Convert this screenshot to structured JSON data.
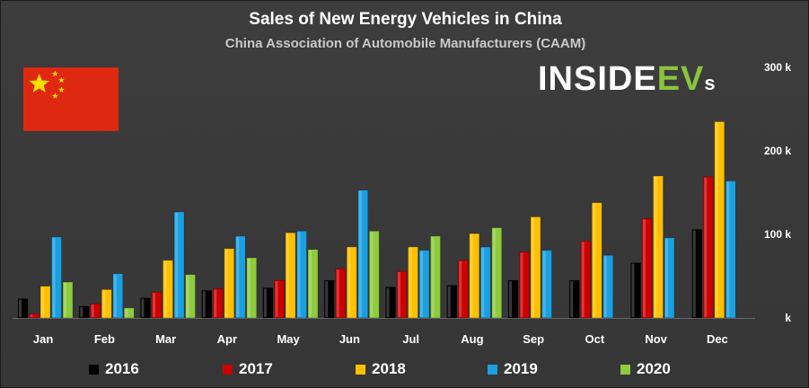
{
  "header": {
    "title": "Sales of New Energy Vehicles in China",
    "subtitle": "China Association of Automobile Manufacturers (CAAM)"
  },
  "logo": {
    "part1": "INSIDE",
    "part2": "EV",
    "part3": "s"
  },
  "flag_icon": "china-flag-icon",
  "colors": {
    "background": "#3d3d3d",
    "series": [
      "#000000",
      "#cc0000",
      "#ffc000",
      "#1a9fe0",
      "#8ecb3f"
    ],
    "axis_text": "#ffffff",
    "grid": "#555555"
  },
  "chart_data": {
    "type": "bar",
    "title": "Sales of New Energy Vehicles in China",
    "subtitle": "China Association of Automobile Manufacturers (CAAM)",
    "categories": [
      "Jan",
      "Feb",
      "Mar",
      "Apr",
      "May",
      "Jun",
      "Jul",
      "Aug",
      "Sep",
      "Oct",
      "Nov",
      "Dec"
    ],
    "yticks": [
      "k",
      "100 k",
      "200 k",
      "300 k"
    ],
    "ylim": [
      0,
      300000
    ],
    "series": [
      {
        "name": "2016",
        "values": [
          23000,
          14000,
          24000,
          33000,
          36000,
          45000,
          37000,
          39000,
          45000,
          45000,
          66000,
          106000
        ]
      },
      {
        "name": "2017",
        "values": [
          5000,
          17000,
          31000,
          35000,
          45000,
          59000,
          56000,
          69000,
          79000,
          92000,
          119000,
          169000
        ]
      },
      {
        "name": "2018",
        "values": [
          38000,
          34000,
          69000,
          83000,
          102000,
          85000,
          85000,
          101000,
          121000,
          138000,
          170000,
          235000
        ]
      },
      {
        "name": "2019",
        "values": [
          97000,
          53000,
          127000,
          98000,
          104000,
          153000,
          81000,
          85000,
          81000,
          75000,
          96000,
          164000
        ]
      },
      {
        "name": "2020",
        "values": [
          43000,
          12000,
          52000,
          72000,
          82000,
          104000,
          98000,
          108000,
          null,
          null,
          null,
          null
        ]
      }
    ],
    "xlabel": "",
    "ylabel": "",
    "grid": false,
    "legend_position": "bottom"
  }
}
